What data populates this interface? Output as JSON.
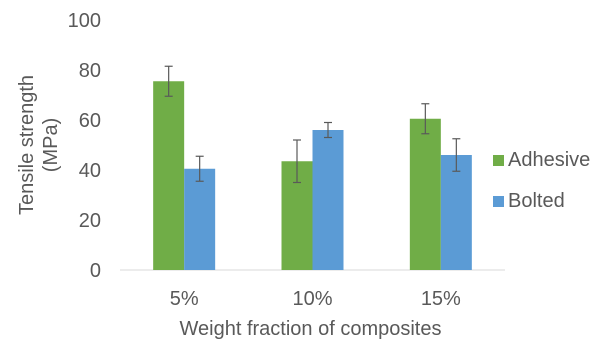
{
  "chart_data": {
    "type": "bar",
    "title": "",
    "xlabel": "Weight fraction of composites",
    "ylabel_lines": [
      "Tensile strength",
      "(MPa)"
    ],
    "categories": [
      "5%",
      "10%",
      "15%"
    ],
    "ylim": [
      0,
      100
    ],
    "yticks": [
      0,
      20,
      40,
      60,
      80,
      100
    ],
    "grid": false,
    "legend_position": "right",
    "series": [
      {
        "name": "Adhesive",
        "color": "#70ad47",
        "values": [
          75.5,
          43.5,
          60.5
        ],
        "error": [
          6.0,
          8.5,
          6.0
        ]
      },
      {
        "name": "Bolted",
        "color": "#5b9bd5",
        "values": [
          40.5,
          56.0,
          46.0
        ],
        "error": [
          5.0,
          3.0,
          6.5
        ]
      }
    ]
  }
}
